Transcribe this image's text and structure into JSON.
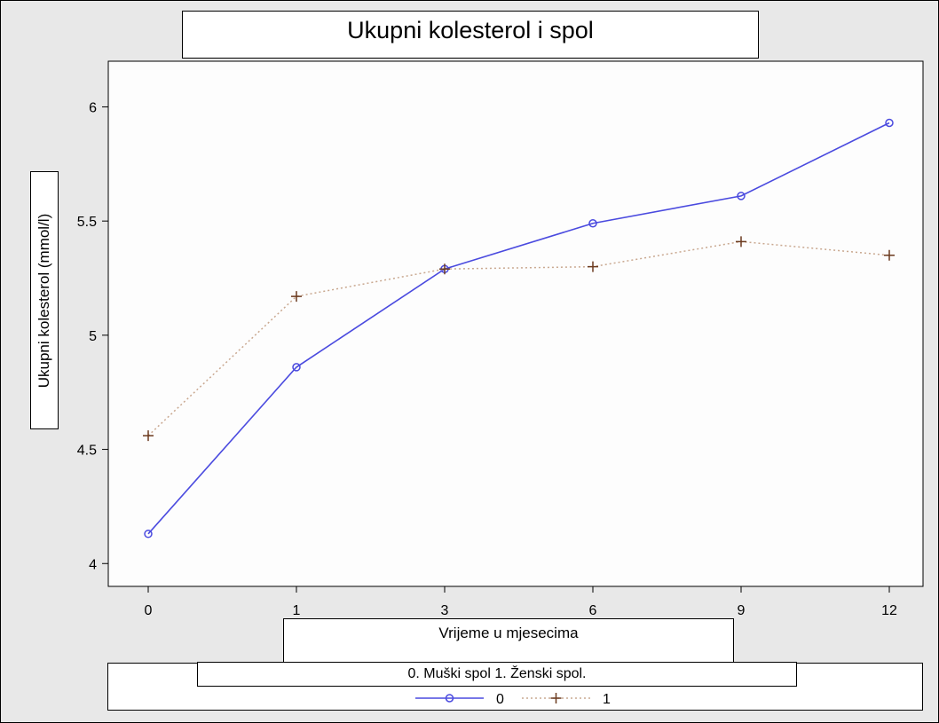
{
  "chart_data": {
    "type": "line",
    "title": "Ukupni kolesterol i spol",
    "xlabel": "Vrijeme u mjesecima",
    "ylabel": "Ukupni kolesterol (mmol/l)",
    "legend_title": "0. Muški spol 1. Ženski spol.",
    "categories": [
      "0",
      "1",
      "3",
      "6",
      "9",
      "12"
    ],
    "ylim": [
      3.9,
      6.2
    ],
    "yticks": [
      "4",
      "4.5",
      "5",
      "5.5",
      "6"
    ],
    "ytick_values": [
      4,
      4.5,
      5,
      5.5,
      6
    ],
    "grid": false,
    "legend_position": "bottom",
    "series": [
      {
        "name": "0",
        "values": [
          4.13,
          4.86,
          5.29,
          5.49,
          5.61,
          5.93
        ],
        "color": "#4a4adf",
        "line_style": "solid",
        "marker": "circle"
      },
      {
        "name": "1",
        "values": [
          4.56,
          5.17,
          5.29,
          5.3,
          5.41,
          5.35
        ],
        "color": "#6b3a1e",
        "line_color": "#c9a890",
        "line_style": "dotted",
        "marker": "plus"
      }
    ],
    "plot_background": "#fdfdfd",
    "page_background": "#e8e8e8"
  }
}
